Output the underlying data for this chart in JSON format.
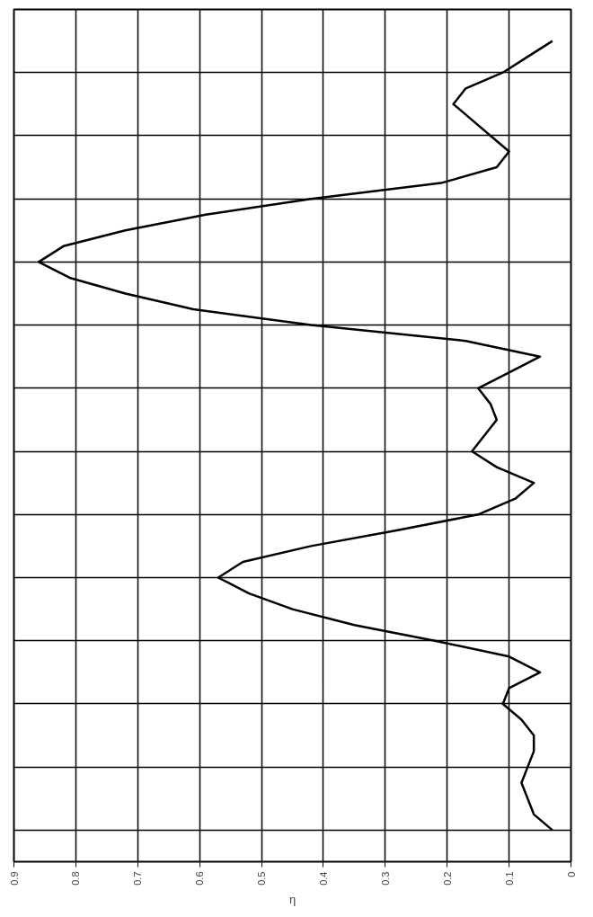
{
  "chart_data": {
    "type": "line",
    "orientation": "horizontal",
    "xlabel": "η",
    "categories": [
      null,
      null,
      null,
      null,
      null,
      null,
      null,
      null,
      null,
      null,
      null,
      null,
      null,
      null,
      null,
      null,
      null,
      null,
      null,
      null,
      null,
      null,
      null,
      null,
      null,
      null,
      null,
      null,
      null,
      null,
      null,
      null,
      null,
      null,
      null,
      null,
      null,
      null,
      null,
      null,
      null,
      null,
      null,
      null,
      null,
      null,
      null,
      null,
      null,
      null,
      null
    ],
    "series": [
      {
        "color": "#000000",
        "values": [
          0.03,
          0.07,
          0.11,
          0.17,
          0.19,
          0.16,
          0.13,
          0.1,
          0.12,
          0.21,
          0.42,
          0.59,
          0.72,
          0.82,
          0.86,
          0.81,
          0.72,
          0.61,
          0.42,
          0.17,
          0.05,
          0.1,
          0.15,
          0.13,
          0.12,
          0.14,
          0.16,
          0.12,
          0.06,
          0.09,
          0.15,
          0.28,
          0.42,
          0.53,
          0.57,
          0.52,
          0.45,
          0.35,
          0.22,
          0.1,
          0.05,
          0.1,
          0.11,
          0.08,
          0.06,
          0.06,
          0.07,
          0.08,
          0.07,
          0.06,
          0.03
        ]
      }
    ],
    "xlim": [
      0.9,
      0
    ],
    "xticks": [
      0.9,
      0.8,
      0.7,
      0.6,
      0.5,
      0.4,
      0.3,
      0.2,
      0.1,
      0
    ],
    "grid": true,
    "tick_labels": "x",
    "marker": "none",
    "line_style": "solid"
  }
}
